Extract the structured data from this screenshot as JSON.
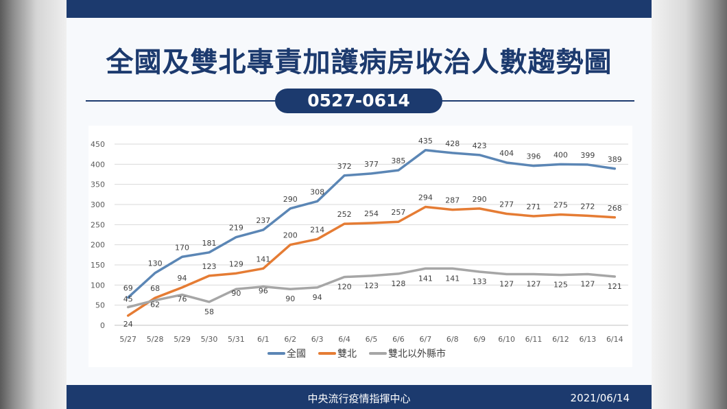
{
  "title": "全國及雙北專責加護病房收治人數趨勢圖",
  "date_range": "0527-0614",
  "footer": {
    "agency": "中央流行疫情指揮中心",
    "date": "2021/06/14"
  },
  "colors": {
    "brand": "#1c3a6e",
    "national": "#5b86b5",
    "taipei": "#e57c34",
    "outside": "#a6a6a6"
  },
  "chart_data": {
    "type": "line",
    "title": "",
    "xlabel": "",
    "ylabel": "",
    "categories": [
      "5/27",
      "5/28",
      "5/29",
      "5/30",
      "5/31",
      "6/1",
      "6/2",
      "6/3",
      "6/4",
      "6/5",
      "6/6",
      "6/7",
      "6/8",
      "6/9",
      "6/10",
      "6/11",
      "6/12",
      "6/13",
      "6/14"
    ],
    "ylim": [
      0,
      450
    ],
    "yticks": [
      0,
      50,
      100,
      150,
      200,
      250,
      300,
      350,
      400,
      450
    ],
    "grid": true,
    "legend_position": "bottom",
    "series": [
      {
        "name": "全國",
        "values": [
          69,
          130,
          170,
          181,
          219,
          237,
          290,
          308,
          372,
          377,
          385,
          435,
          428,
          423,
          404,
          396,
          400,
          399,
          389
        ]
      },
      {
        "name": "雙北",
        "values": [
          24,
          68,
          94,
          123,
          129,
          141,
          200,
          214,
          252,
          254,
          257,
          294,
          287,
          290,
          277,
          271,
          275,
          272,
          268
        ]
      },
      {
        "name": "雙北以外縣市",
        "values": [
          45,
          62,
          76,
          58,
          90,
          96,
          90,
          94,
          120,
          123,
          128,
          141,
          141,
          133,
          127,
          127,
          125,
          127,
          121
        ]
      }
    ]
  }
}
